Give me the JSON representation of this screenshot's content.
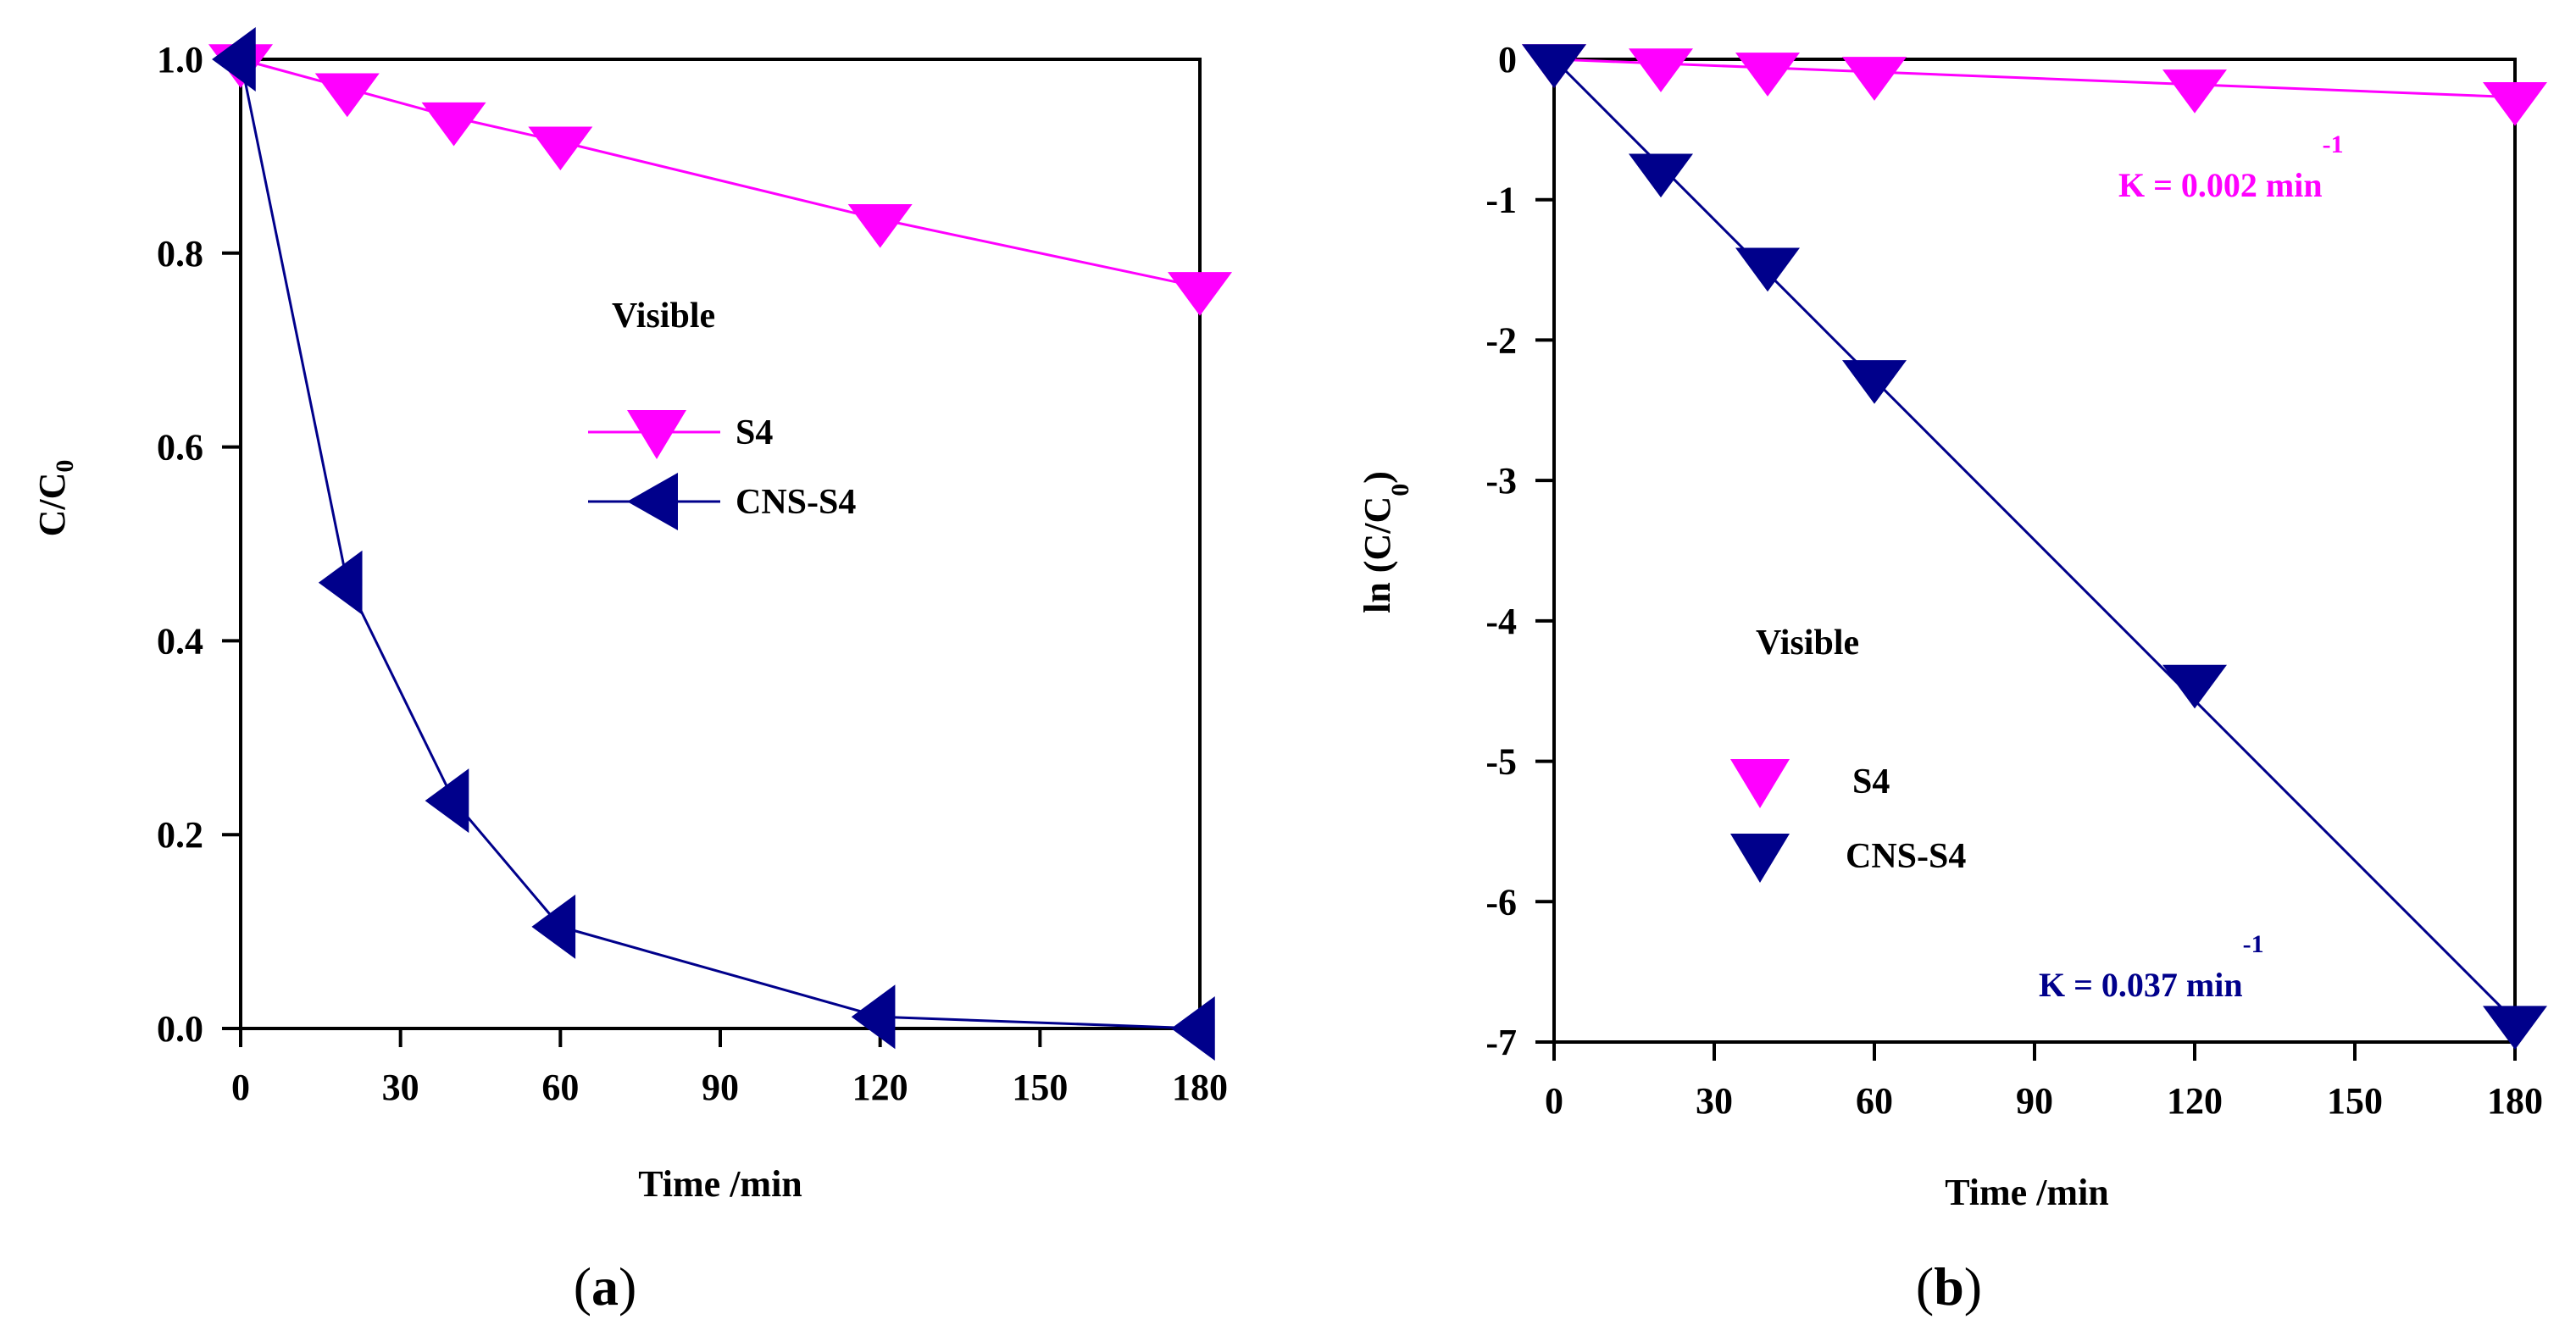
{
  "colors": {
    "s4": "#ff00ff",
    "cns": "#00008b",
    "axis": "#000000"
  },
  "chart_data": [
    {
      "type": "line",
      "panel_label_open": "(",
      "panel_label_letter": "a",
      "panel_label_close": ")",
      "xlabel": "Time /min",
      "ylabel_main": "C/C",
      "ylabel_sub": "0",
      "xlim": [
        0,
        180
      ],
      "ylim": [
        0,
        1.0
      ],
      "xticks": [
        0,
        30,
        60,
        90,
        120,
        150,
        180
      ],
      "xtick_labels": [
        "0",
        "30",
        "60",
        "90",
        "120",
        "150",
        "180"
      ],
      "yticks": [
        0,
        0.2,
        0.4,
        0.6,
        0.8,
        1.0
      ],
      "ytick_labels": [
        "0.0",
        "0.2",
        "0.4",
        "0.6",
        "0.8",
        "1.0"
      ],
      "annotation": "Visible",
      "legend": [
        {
          "series": "S4",
          "label": "S4",
          "marker": "triangle-down"
        },
        {
          "series": "CNS-S4",
          "label": "CNS-S4",
          "marker": "triangle-left"
        }
      ],
      "series": [
        {
          "name": "S4",
          "color_key": "s4",
          "marker": "triangle-down",
          "x": [
            0,
            20,
            40,
            60,
            120,
            180
          ],
          "y": [
            1.0,
            0.97,
            0.94,
            0.915,
            0.835,
            0.765
          ]
        },
        {
          "name": "CNS-S4",
          "color_key": "cns",
          "marker": "triangle-left",
          "x": [
            0,
            20,
            40,
            60,
            120,
            180
          ],
          "y": [
            1.0,
            0.46,
            0.235,
            0.105,
            0.012,
            0.0
          ]
        }
      ]
    },
    {
      "type": "line",
      "panel_label_open": "(",
      "panel_label_letter": "b",
      "panel_label_close": ")",
      "xlabel": "Time /min",
      "ylabel_main": "ln (C/C",
      "ylabel_sub": "0",
      "ylabel_close": ")",
      "xlim": [
        0,
        180
      ],
      "ylim": [
        -7,
        0
      ],
      "xticks": [
        0,
        30,
        60,
        90,
        120,
        150,
        180
      ],
      "xtick_labels": [
        "0",
        "30",
        "60",
        "90",
        "120",
        "150",
        "180"
      ],
      "yticks": [
        0,
        -1,
        -2,
        -3,
        -4,
        -5,
        -6,
        -7
      ],
      "ytick_labels": [
        "0",
        "-1",
        "-2",
        "-3",
        "-4",
        "-5",
        "-6",
        "-7"
      ],
      "annotation": "Visible",
      "rate_s4_text": "K = 0.002 min",
      "rate_s4_sup": "-1",
      "rate_cns_text": "K = 0.037 min",
      "rate_cns_sup": "-1",
      "legend": [
        {
          "series": "S4",
          "label": "S4",
          "marker": "triangle-down"
        },
        {
          "series": "CNS-S4",
          "label": "CNS-S4",
          "marker": "triangle-down"
        }
      ],
      "series": [
        {
          "name": "S4",
          "color_key": "s4",
          "marker": "triangle-down",
          "x": [
            0,
            20,
            40,
            60,
            120,
            180
          ],
          "y": [
            0,
            -0.03,
            -0.06,
            -0.09,
            -0.18,
            -0.27
          ],
          "fit_x": [
            0,
            180
          ],
          "fit_y": [
            0,
            -0.27
          ]
        },
        {
          "name": "CNS-S4",
          "color_key": "cns",
          "marker": "triangle-down",
          "x": [
            0,
            20,
            40,
            60,
            120,
            180
          ],
          "y": [
            0,
            -0.78,
            -1.45,
            -2.25,
            -4.42,
            -6.85
          ],
          "fit_x": [
            0,
            180
          ],
          "fit_y": [
            0,
            -6.85
          ]
        }
      ]
    }
  ]
}
